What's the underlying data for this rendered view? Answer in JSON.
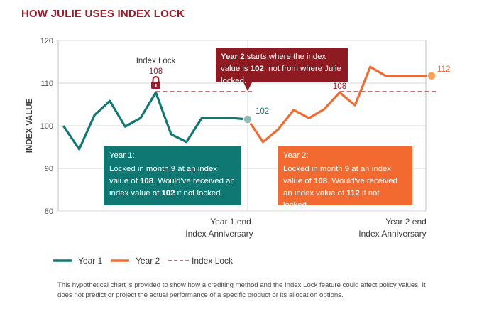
{
  "page_title": "HOW JULIE USES INDEX LOCK",
  "colors": {
    "year1": "#0f7873",
    "year2": "#f26a30",
    "lock": "#9b1c2b",
    "title": "#9b1c2b"
  },
  "annotations": {
    "index_lock_label": "Index Lock",
    "lock_value_year1": "108",
    "lock_value_year2": "108",
    "end_value_year1": "102",
    "end_value_year2": "112",
    "year1_end_line1": "Year 1 end",
    "year1_end_line2": "Index Anniversary",
    "year2_end_line1": "Year 2 end",
    "year2_end_line2": "Index Anniversary"
  },
  "callouts": {
    "top": {
      "pre": "Year 2",
      "mid1": " starts where the index value is ",
      "val": "102",
      "post": ", not from where Julie locked."
    },
    "year1": {
      "heading": "Year 1:",
      "t1": "Locked in month 9 at an index value of ",
      "v1": "108",
      "t2": ". Would've received an index value of ",
      "v2": "102",
      "t3": " if not locked."
    },
    "year2": {
      "heading": "Year 2:",
      "t1": "Locked in month 9 at an index value of ",
      "v1": "108",
      "t2": ". Would've received an index value of ",
      "v2": "112",
      "t3": " if not locked."
    }
  },
  "footnote": "This hypothetical chart is provided to show how a crediting method and the Index Lock feature could affect policy values. It does not predict or project the actual performance of a specific product or its allocation options.",
  "chart_data": {
    "type": "line",
    "ylabel": "INDEX VALUE",
    "ylim": [
      80,
      120
    ],
    "yticks": [
      80,
      90,
      100,
      110,
      120
    ],
    "x": [
      0,
      1,
      2,
      3,
      4,
      5,
      6,
      7,
      8,
      9,
      10,
      11,
      12,
      13,
      14,
      15,
      16,
      17,
      18,
      19,
      20,
      21,
      22,
      23,
      24
    ],
    "grid": true,
    "legend_position": "bottom-left",
    "legend": [
      {
        "label": "Year 1",
        "style": "solid",
        "color": "#0f7873"
      },
      {
        "label": "Year 2",
        "style": "solid",
        "color": "#f26a30"
      },
      {
        "label": "Index Lock",
        "style": "dashed",
        "color": "#9b1c2b"
      }
    ],
    "series": [
      {
        "name": "Year 1",
        "x": [
          0,
          1,
          2,
          3,
          4,
          5,
          6,
          7,
          8,
          9,
          10,
          11,
          12
        ],
        "values": [
          99.8,
          94.5,
          102.5,
          105.8,
          99.8,
          101.8,
          107.8,
          98.0,
          96.2,
          101.8,
          101.8,
          101.8,
          101.5
        ]
      },
      {
        "name": "Year 2",
        "x": [
          12,
          13,
          14,
          15,
          16,
          17,
          18,
          19,
          20,
          21,
          22,
          23,
          24
        ],
        "values": [
          101.5,
          96.2,
          99.2,
          103.7,
          101.8,
          103.9,
          107.8,
          104.8,
          113.8,
          111.7,
          111.7,
          111.7,
          111.7
        ]
      }
    ],
    "index_lock": [
      {
        "x_start": 6,
        "x_end": 12,
        "value": 108
      },
      {
        "x_start": 18,
        "x_end": 24,
        "value": 108
      }
    ]
  }
}
